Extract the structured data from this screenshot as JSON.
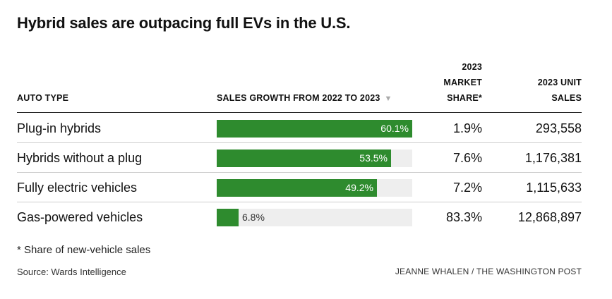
{
  "title": "Hybrid sales are outpacing full EVs in the U.S.",
  "headers": {
    "auto_type": "AUTO TYPE",
    "growth": "SALES GROWTH FROM 2022 TO 2023",
    "sort_icon": "▼",
    "share_line1": "2023",
    "share_line2": "MARKET",
    "share_line3": "SHARE*",
    "units_line1": "2023 UNIT",
    "units_line2": "SALES"
  },
  "chart_data": {
    "type": "table",
    "title": "Hybrid sales are outpacing full EVs in the U.S.",
    "columns": [
      "AUTO TYPE",
      "SALES GROWTH FROM 2022 TO 2023",
      "2023 MARKET SHARE*",
      "2023 UNIT SALES"
    ],
    "bar_max": 60.1,
    "rows": [
      {
        "auto_type": "Plug-in hybrids",
        "growth": 60.1,
        "growth_label": "60.1%",
        "share": "1.9%",
        "units": "293,558"
      },
      {
        "auto_type": "Hybrids without a plug",
        "growth": 53.5,
        "growth_label": "53.5%",
        "share": "7.6%",
        "units": "1,176,381"
      },
      {
        "auto_type": "Fully electric vehicles",
        "growth": 49.2,
        "growth_label": "49.2%",
        "share": "7.2%",
        "units": "1,115,633"
      },
      {
        "auto_type": "Gas-powered vehicles",
        "growth": 6.8,
        "growth_label": "6.8%",
        "share": "83.3%",
        "units": "12,868,897"
      }
    ],
    "colors": {
      "bar": "#2e8b2e",
      "track": "#eeeeee"
    }
  },
  "footnote": "* Share of new-vehicle sales",
  "source": "Source: Wards Intelligence",
  "credit": "JEANNE WHALEN / THE WASHINGTON POST"
}
